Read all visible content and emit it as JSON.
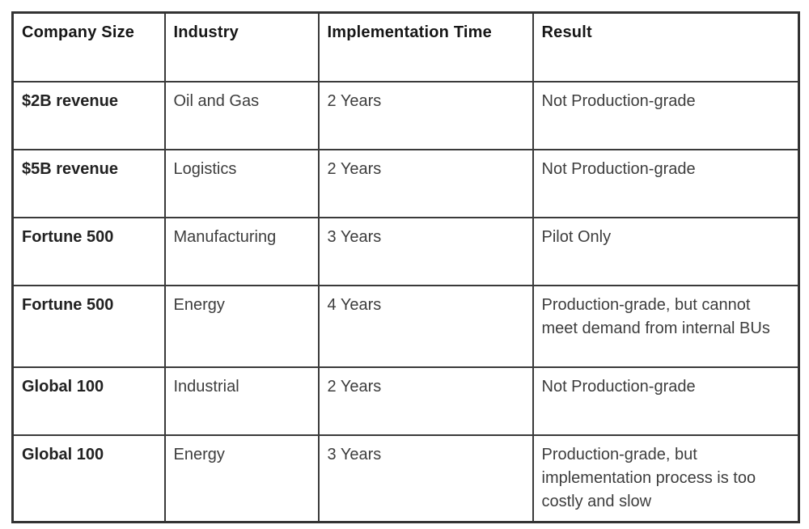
{
  "table": {
    "columns": [
      {
        "key": "company_size",
        "label": "Company Size"
      },
      {
        "key": "industry",
        "label": "Industry"
      },
      {
        "key": "implementation_time",
        "label": "Implementation Time"
      },
      {
        "key": "result",
        "label": "Result"
      }
    ],
    "rows": [
      {
        "company_size": "$2B revenue",
        "industry": "Oil and Gas",
        "implementation_time": "2 Years",
        "result": "Not Production-grade",
        "tall": false
      },
      {
        "company_size": "$5B revenue",
        "industry": "Logistics",
        "implementation_time": "2 Years",
        "result": "Not Production-grade",
        "tall": false
      },
      {
        "company_size": "Fortune 500",
        "industry": "Manufacturing",
        "implementation_time": "3 Years",
        "result": "Pilot Only",
        "tall": false
      },
      {
        "company_size": "Fortune 500",
        "industry": "Energy",
        "implementation_time": "4 Years",
        "result": "Production-grade, but cannot meet demand from internal BUs",
        "tall": true
      },
      {
        "company_size": "Global 100",
        "industry": "Industrial",
        "implementation_time": "2 Years",
        "result": "Not Production-grade",
        "tall": false
      },
      {
        "company_size": "Global 100",
        "industry": "Energy",
        "implementation_time": "3 Years",
        "result": "Production-grade, but implementation process is too costly and slow",
        "tall": true
      }
    ]
  },
  "colors": {
    "border": "#3a3a3a",
    "header_text": "#161616",
    "body_text": "#3d3d3d",
    "background": "#ffffff"
  }
}
